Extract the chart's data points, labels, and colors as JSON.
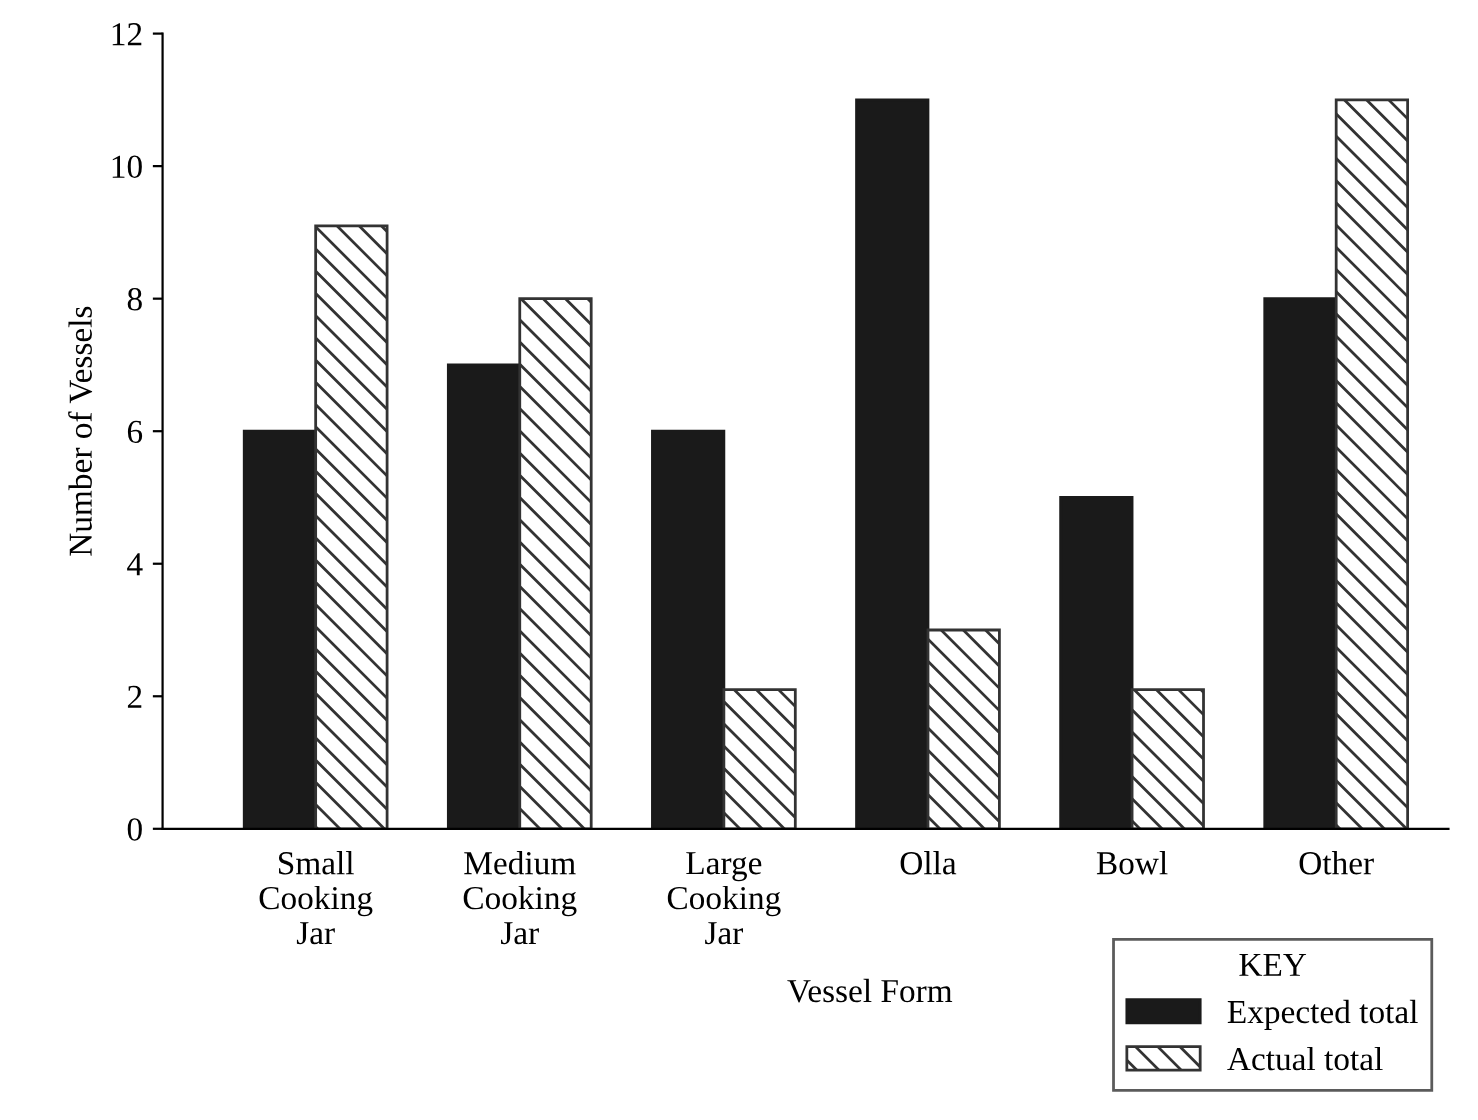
{
  "chart_data": {
    "type": "bar",
    "xlabel": "Vessel Form",
    "ylabel": "Number of Vessels",
    "legend_title": "KEY",
    "categories": [
      "Small\nCooking\nJar",
      "Medium\nCooking\nJar",
      "Large\nCooking\nJar",
      "Olla",
      "Bowl",
      "Other"
    ],
    "series": [
      {
        "name": "Expected total",
        "color": "#1a1a1a",
        "values": [
          6,
          7,
          6,
          11,
          5,
          8
        ]
      },
      {
        "name": "Actual total",
        "color": "#333333",
        "values": [
          9.1,
          8,
          2.1,
          3,
          2.1,
          11
        ]
      }
    ],
    "ylim": [
      0,
      12
    ],
    "yticks": [
      0,
      2,
      4,
      6,
      8,
      10,
      12
    ],
    "grid": false,
    "legend": "bottom right"
  }
}
